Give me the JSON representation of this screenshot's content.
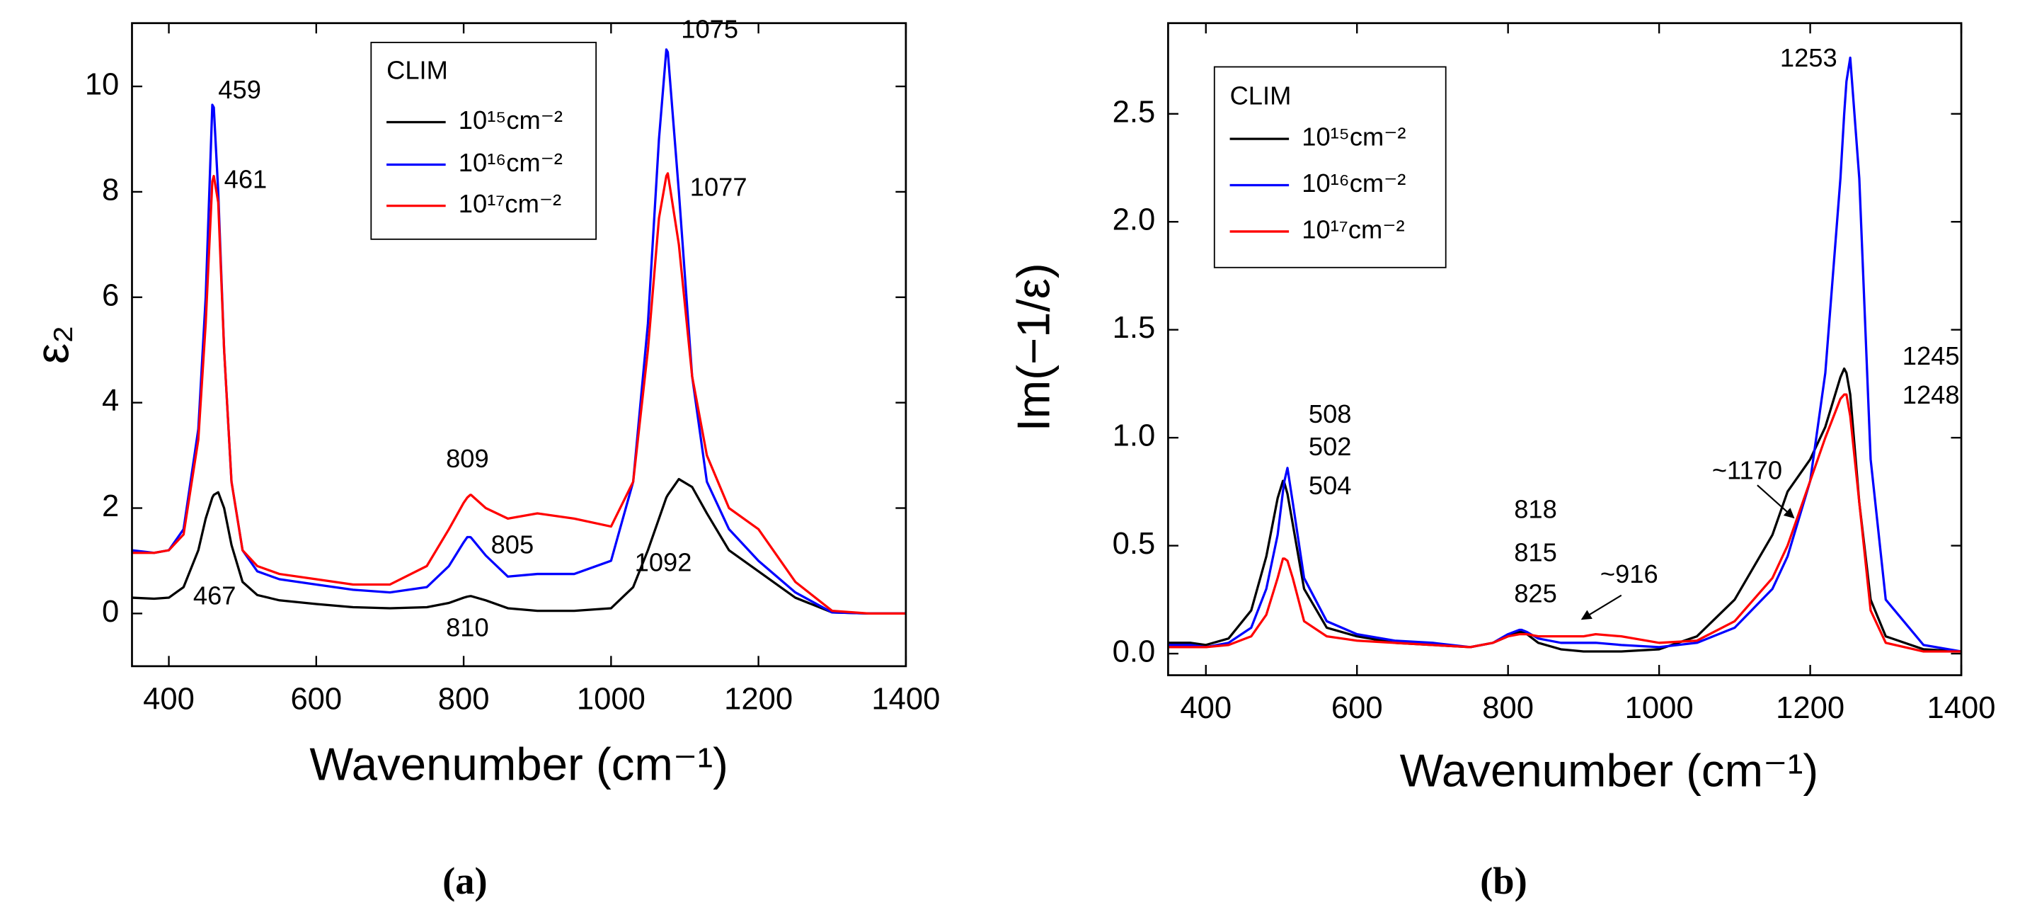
{
  "chart_data": [
    {
      "type": "line",
      "panel_label": "(a)",
      "x_label": "Wavenumber (cm⁻¹)",
      "y_label": "ε₂",
      "legend_title": "CLIM",
      "legend": "upper center",
      "xlim": [
        350,
        1400
      ],
      "xticks": [
        400,
        600,
        800,
        1000,
        1200,
        1400
      ],
      "ylim": [
        -1,
        11.2
      ],
      "yticks": [
        0,
        2,
        4,
        6,
        8,
        10
      ],
      "x": [
        350,
        380,
        400,
        420,
        440,
        450,
        459,
        461,
        467,
        475,
        485,
        500,
        520,
        550,
        600,
        650,
        700,
        750,
        780,
        800,
        805,
        809,
        810,
        830,
        860,
        900,
        950,
        1000,
        1030,
        1050,
        1065,
        1075,
        1077,
        1092,
        1110,
        1130,
        1160,
        1200,
        1250,
        1300,
        1350,
        1400
      ],
      "series": [
        {
          "name": "10¹⁵cm⁻²",
          "color": "#000000",
          "values": [
            0.3,
            0.28,
            0.3,
            0.5,
            1.2,
            1.8,
            2.2,
            2.25,
            2.3,
            2.0,
            1.3,
            0.6,
            0.35,
            0.25,
            0.18,
            0.12,
            0.1,
            0.12,
            0.2,
            0.3,
            0.32,
            0.33,
            0.33,
            0.25,
            0.1,
            0.05,
            0.05,
            0.1,
            0.5,
            1.2,
            1.8,
            2.2,
            2.25,
            2.55,
            2.4,
            1.9,
            1.2,
            0.8,
            0.3,
            0.02,
            0,
            0
          ]
        },
        {
          "name": "10¹⁶cm⁻²",
          "color": "#0000ff",
          "values": [
            1.2,
            1.15,
            1.2,
            1.6,
            3.5,
            6,
            9.65,
            9.6,
            8,
            5,
            2.5,
            1.2,
            0.8,
            0.65,
            0.55,
            0.45,
            0.4,
            0.5,
            0.9,
            1.35,
            1.45,
            1.45,
            1.44,
            1.1,
            0.7,
            0.75,
            0.75,
            1.0,
            2.5,
            5.5,
            9,
            10.7,
            10.65,
            8,
            4.5,
            2.5,
            1.6,
            1.0,
            0.4,
            0.02,
            0,
            0
          ]
        },
        {
          "name": "10¹⁷cm⁻²",
          "color": "#ff0000",
          "values": [
            1.15,
            1.15,
            1.2,
            1.5,
            3.3,
            5.5,
            8.2,
            8.3,
            7.8,
            5,
            2.5,
            1.2,
            0.9,
            0.75,
            0.65,
            0.55,
            0.55,
            0.9,
            1.6,
            2.1,
            2.2,
            2.25,
            2.25,
            2.0,
            1.8,
            1.9,
            1.8,
            1.65,
            2.5,
            5,
            7.5,
            8.3,
            8.35,
            7,
            4.5,
            3,
            2.0,
            1.6,
            0.6,
            0.05,
            0,
            0
          ]
        }
      ],
      "annotations": [
        "459",
        "461",
        "467",
        "809",
        "805",
        "810",
        "1075",
        "1077",
        "1092"
      ]
    },
    {
      "type": "line",
      "panel_label": "(b)",
      "x_label": "Wavenumber (cm⁻¹)",
      "y_label": "Im(−1/ε)",
      "legend_title": "CLIM",
      "legend": "upper left",
      "xlim": [
        350,
        1400
      ],
      "xticks": [
        400,
        600,
        800,
        1000,
        1200,
        1400
      ],
      "ylim": [
        -0.1,
        2.92
      ],
      "yticks": [
        {
          "value": 0,
          "label": "0.0"
        },
        0.5,
        {
          "value": 1,
          "label": "1.0"
        },
        1.5,
        {
          "value": 2,
          "label": "2.0"
        },
        2.5
      ],
      "x": [
        350,
        380,
        400,
        430,
        460,
        480,
        495,
        502,
        504,
        508,
        515,
        530,
        560,
        600,
        650,
        700,
        750,
        780,
        800,
        815,
        818,
        825,
        840,
        870,
        900,
        916,
        950,
        1000,
        1050,
        1100,
        1150,
        1170,
        1200,
        1220,
        1240,
        1245,
        1248,
        1253,
        1265,
        1280,
        1300,
        1350,
        1400
      ],
      "series": [
        {
          "name": "10¹⁵cm⁻²",
          "color": "#000000",
          "values": [
            0.05,
            0.05,
            0.04,
            0.07,
            0.2,
            0.45,
            0.72,
            0.8,
            0.79,
            0.74,
            0.6,
            0.3,
            0.12,
            0.08,
            0.05,
            0.04,
            0.03,
            0.05,
            0.08,
            0.1,
            0.1,
            0.09,
            0.05,
            0.02,
            0.01,
            0.01,
            0.01,
            0.02,
            0.08,
            0.25,
            0.55,
            0.75,
            0.9,
            1.05,
            1.28,
            1.32,
            1.3,
            1.2,
            0.7,
            0.25,
            0.08,
            0.02,
            0.01
          ]
        },
        {
          "name": "10¹⁶cm⁻²",
          "color": "#0000ff",
          "values": [
            0.04,
            0.04,
            0.03,
            0.05,
            0.12,
            0.3,
            0.55,
            0.75,
            0.8,
            0.86,
            0.7,
            0.35,
            0.15,
            0.09,
            0.06,
            0.05,
            0.03,
            0.05,
            0.09,
            0.11,
            0.11,
            0.1,
            0.07,
            0.05,
            0.05,
            0.05,
            0.04,
            0.03,
            0.05,
            0.12,
            0.3,
            0.45,
            0.8,
            1.3,
            2.2,
            2.5,
            2.65,
            2.76,
            2.2,
            0.9,
            0.25,
            0.04,
            0.01
          ]
        },
        {
          "name": "10¹⁷cm⁻²",
          "color": "#ff0000",
          "values": [
            0.03,
            0.03,
            0.03,
            0.04,
            0.08,
            0.18,
            0.35,
            0.44,
            0.44,
            0.43,
            0.35,
            0.15,
            0.08,
            0.06,
            0.05,
            0.04,
            0.03,
            0.05,
            0.08,
            0.09,
            0.09,
            0.09,
            0.08,
            0.08,
            0.08,
            0.09,
            0.08,
            0.05,
            0.06,
            0.15,
            0.35,
            0.5,
            0.8,
            1.0,
            1.18,
            1.2,
            1.2,
            1.1,
            0.7,
            0.2,
            0.05,
            0.01,
            0.01
          ]
        }
      ],
      "annotations": [
        "508",
        "502",
        "504",
        "818",
        "815",
        "825",
        "~916",
        "~1170",
        "1253",
        "1245",
        "1248"
      ]
    }
  ]
}
